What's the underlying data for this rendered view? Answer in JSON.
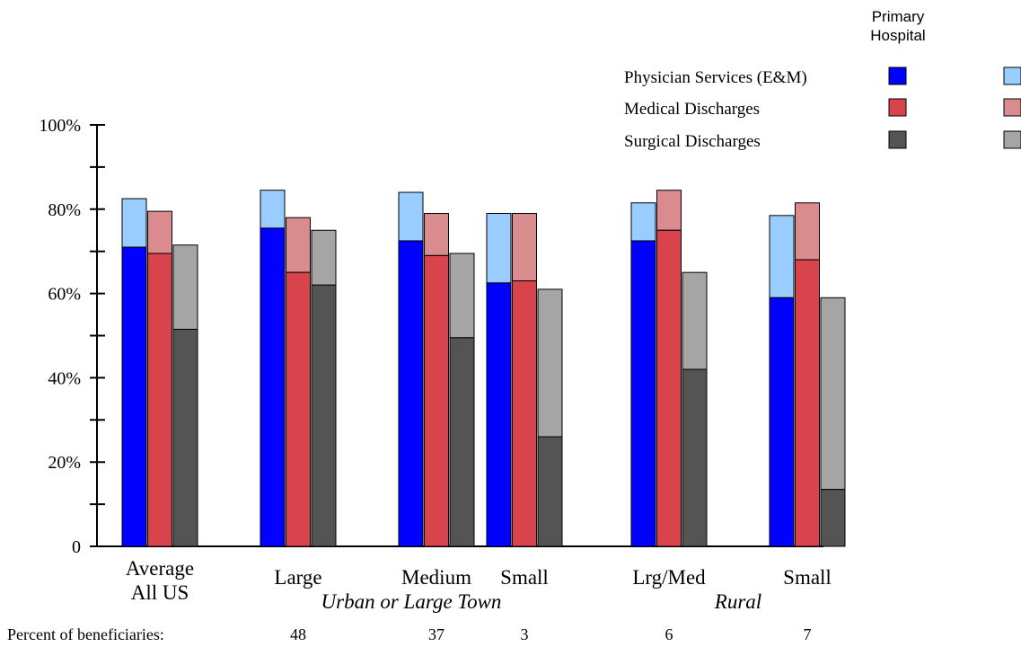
{
  "chart_data": {
    "type": "bar",
    "stacked": true,
    "title": "",
    "xlabel": "",
    "ylabel": "",
    "ylim": [
      0,
      100
    ],
    "yticks": [
      "0",
      "20%",
      "40%",
      "60%",
      "80%",
      "100%"
    ],
    "yticks_values": [
      0,
      20,
      40,
      60,
      80,
      100
    ],
    "grid": false,
    "categories": [
      {
        "label": "Average",
        "label2": "All US"
      },
      {
        "label": "Large",
        "label2": ""
      },
      {
        "label": "Medium",
        "label2": ""
      },
      {
        "label": "Small",
        "label2": ""
      },
      {
        "label": "Lrg/Med",
        "label2": ""
      },
      {
        "label": "Small",
        "label2": ""
      }
    ],
    "groups": [
      {
        "label": "Urban or Large Town",
        "categories": [
          1,
          2,
          3
        ]
      },
      {
        "label": "Rural",
        "categories": [
          4,
          5
        ]
      }
    ],
    "series": [
      {
        "name": "Physician Services (E&M)",
        "primary_color": "#0000ff",
        "secondary_color": "#99ccff",
        "primary": [
          71,
          75.5,
          72.5,
          62.5,
          72.5,
          59
        ],
        "total": [
          82.5,
          84.5,
          84,
          79,
          81.5,
          78.5
        ]
      },
      {
        "name": "Medical Discharges",
        "primary_color": "#d9434b",
        "secondary_color": "#d98b8e",
        "primary": [
          69.5,
          65,
          69,
          63,
          75,
          68
        ],
        "total": [
          79.5,
          78,
          79,
          79,
          84.5,
          81.5
        ]
      },
      {
        "name": "Surgical Discharges",
        "primary_color": "#545454",
        "secondary_color": "#a5a5a5",
        "primary": [
          51.5,
          62,
          49.5,
          26,
          42,
          13.5
        ],
        "total": [
          71.5,
          75,
          69.5,
          61,
          65,
          59
        ]
      }
    ],
    "legend": {
      "position": "top-right",
      "primary_header": [
        "Primary",
        "Hospital"
      ]
    },
    "footer": {
      "label": "Percent of beneficiaries:",
      "values": [
        "",
        "48",
        "37",
        "3",
        "6",
        "7"
      ]
    }
  }
}
